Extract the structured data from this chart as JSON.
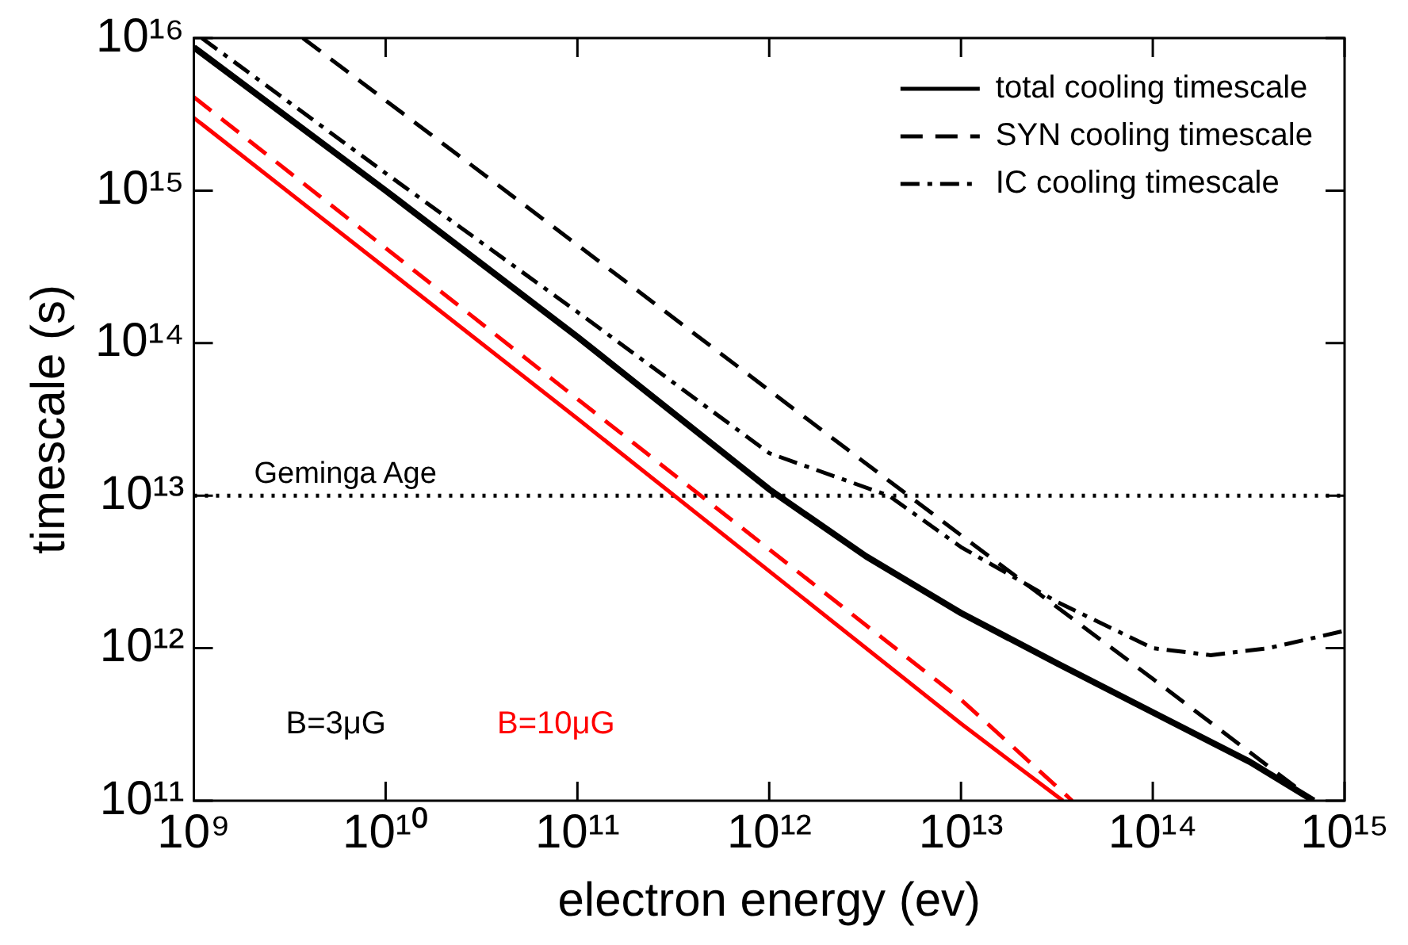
{
  "chart_data": {
    "type": "line",
    "xlabel": "electron energy (ev)",
    "ylabel": "timescale (s)",
    "log": "xy",
    "grid": false,
    "legend": "top right",
    "marker": "none",
    "xlim": [
      1000000000.0,
      1000000000000000.0
    ],
    "ylim": [
      100000000000.0,
      1e+16
    ],
    "xticks": [
      {
        "value": 1000000000.0,
        "label": "10⁹"
      },
      {
        "value": 10000000000.0,
        "label": "10¹⁰"
      },
      {
        "value": 100000000000.0,
        "label": "10¹¹"
      },
      {
        "value": 1000000000000.0,
        "label": "10¹²"
      },
      {
        "value": 10000000000000.0,
        "label": "10¹³"
      },
      {
        "value": 100000000000000.0,
        "label": "10¹⁴"
      },
      {
        "value": 1000000000000000.0,
        "label": "10¹⁵"
      }
    ],
    "yticks": [
      {
        "value": 100000000000.0,
        "label": "10¹¹"
      },
      {
        "value": 1000000000000.0,
        "label": "10¹²"
      },
      {
        "value": 10000000000000.0,
        "label": "10¹³"
      },
      {
        "value": 100000000000000.0,
        "label": "10¹⁴"
      },
      {
        "value": 1000000000000000.0,
        "label": "10¹⁵"
      },
      {
        "value": 1e+16,
        "label": "10¹⁶"
      }
    ],
    "series": [
      {
        "name": "total cooling timescale",
        "color": "#000000",
        "line_style": "solid",
        "x": [
          1000000000.0,
          10000000000.0,
          100000000000.0,
          1000000000000.0,
          3200000000000.0,
          10000000000000.0,
          32000000000000.0,
          100000000000000.0,
          320000000000000.0,
          690000000000000.0
        ],
        "values": [
          8700000000000000.0,
          1000000000000000.0,
          110000000000000.0,
          11000000000000.0,
          4000000000000.0,
          1700000000000.0,
          790000000000.0,
          380000000000.0,
          180000000000.0,
          100000000000.0
        ]
      },
      {
        "name": "SYN cooling timescale",
        "color": "#000000",
        "line_style": "dashed",
        "x": [
          3700000000.0,
          100000000000.0,
          1000000000000.0,
          10000000000000.0,
          100000000000000.0,
          690000000000000.0
        ],
        "values": [
          1e+16,
          440000000000000.0,
          49000000000000.0,
          5500000000000.0,
          630000000000.0,
          100000000000.0
        ]
      },
      {
        "name": "IC cooling timescale",
        "color": "#000000",
        "line_style": "dashdot",
        "x": [
          1100000000.0,
          10000000000.0,
          100000000000.0,
          1000000000000.0,
          4200000000000.0,
          10000000000000.0,
          32000000000000.0,
          100000000000000.0,
          200000000000000.0,
          400000000000000.0,
          1000000000000000.0
        ],
        "values": [
          1e+16,
          1300000000000000.0,
          160000000000000.0,
          19000000000000.0,
          10000000000000.0,
          4600000000000.0,
          2000000000000.0,
          1000000000000.0,
          900000000000.0,
          1000000000000.0,
          1300000000000.0
        ]
      },
      {
        "color": "#ff0000",
        "line_style": "solid",
        "x": [
          1000000000.0,
          100000000000.0,
          10000000000000.0,
          34000000000000.0
        ],
        "values": [
          3000000000000000.0,
          32000000000000.0,
          320000000000.0,
          100000000000.0
        ]
      },
      {
        "color": "#ff0000",
        "line_style": "dashed",
        "x": [
          1000000000.0,
          100000000000.0,
          10000000000000.0,
          38000000000000.0
        ],
        "values": [
          4100000000000000.0,
          43000000000000.0,
          460000000000.0,
          100000000000.0
        ]
      }
    ],
    "ref_lines": [
      {
        "axis": "y",
        "value": 10000000000000.0,
        "label": "Geminga Age",
        "color": "#000000",
        "line_style": "dotted"
      }
    ],
    "annotations": [
      "B=3μG",
      "B=10μG"
    ]
  }
}
